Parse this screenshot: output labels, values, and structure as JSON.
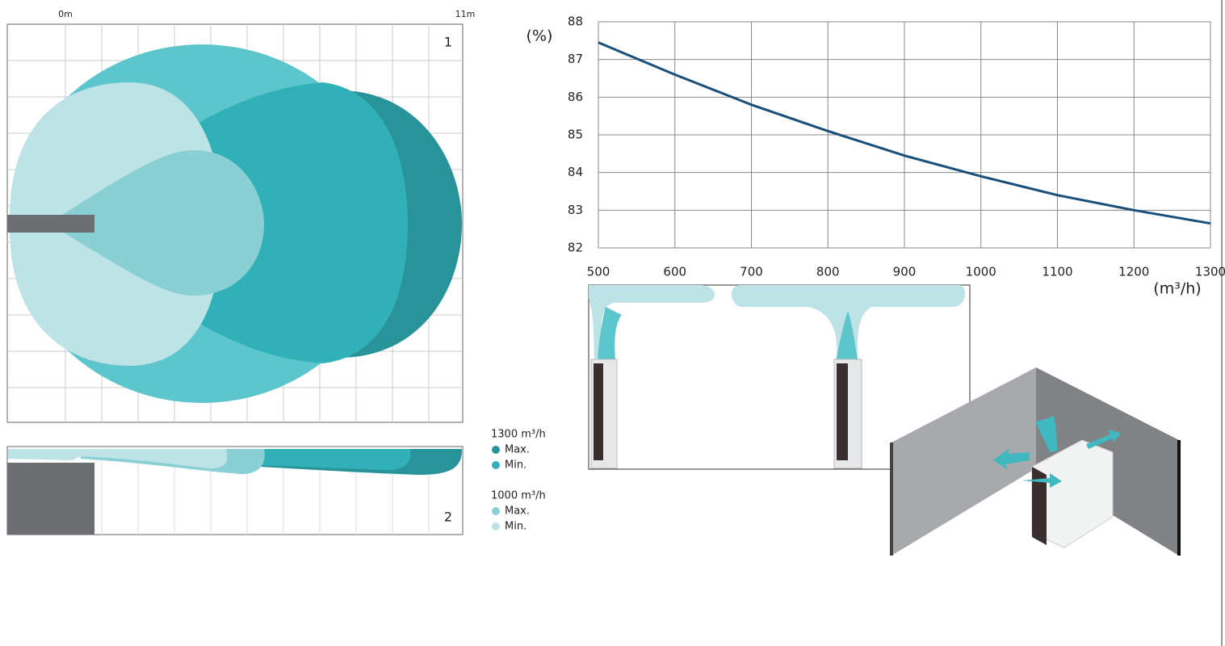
{
  "chart_data": {
    "type": "line",
    "y_label": "(%)",
    "x_label": "(m³/h)",
    "x": [
      500,
      600,
      700,
      800,
      900,
      1000,
      1100,
      1200,
      1300
    ],
    "values": [
      87.45,
      86.6,
      85.8,
      85.1,
      84.45,
      83.9,
      83.4,
      83.0,
      82.65
    ],
    "color": "#1a4f7a",
    "xlim": [
      500,
      1300
    ],
    "xticks": [
      500,
      600,
      700,
      800,
      900,
      1000,
      1100,
      1200,
      1300
    ],
    "ylim": [
      82,
      88
    ],
    "yticks": [
      82,
      83,
      84,
      85,
      86,
      87,
      88
    ],
    "grid": true
  },
  "throw_diagram": {
    "scale_start": "0m",
    "scale_end": "11m",
    "views": [
      "1",
      "2"
    ],
    "legend": [
      {
        "airflow": "1300 m³/h",
        "items": [
          {
            "label": "Max.",
            "color": "#28949a"
          },
          {
            "label": "Min.",
            "color": "#32b0b8"
          }
        ]
      },
      {
        "airflow": "1000 m³/h",
        "items": [
          {
            "label": "Max.",
            "color": "#89cfd4"
          },
          {
            "label": "Min.",
            "color": "#bde3e6"
          }
        ]
      }
    ]
  }
}
